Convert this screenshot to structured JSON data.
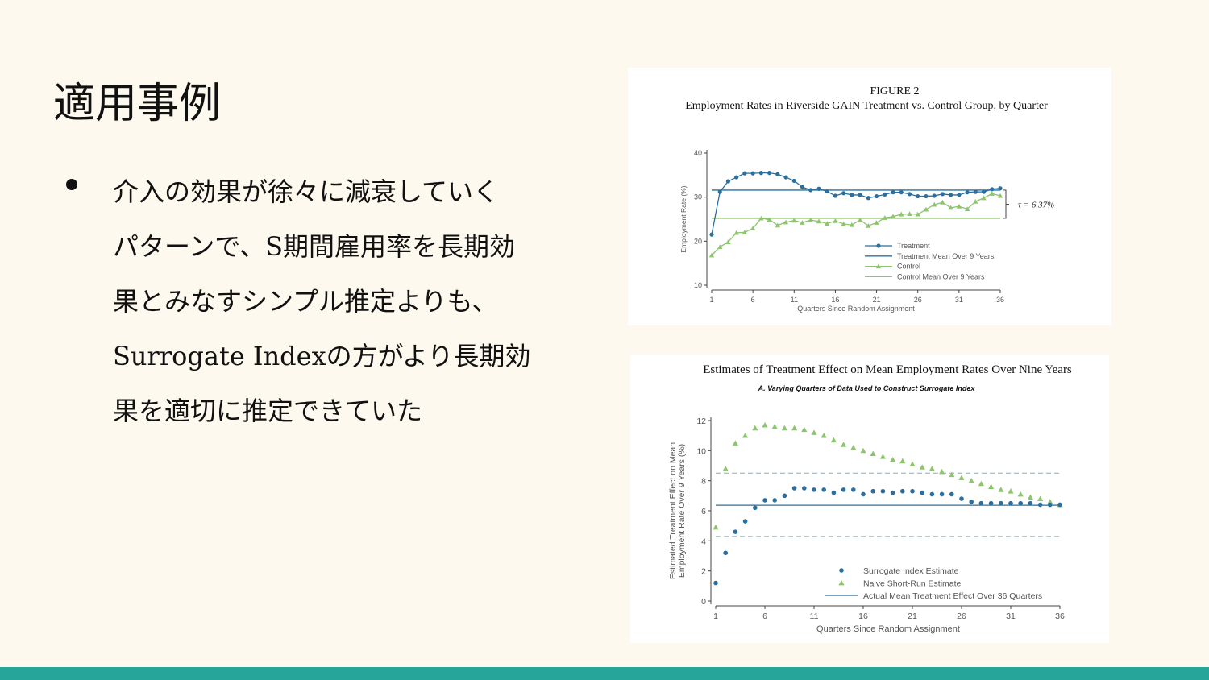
{
  "slide": {
    "title": "適用事例",
    "bullet_lines": [
      "介入の効果が徐々に減衰していく",
      "パターンで、S期間雇用率を長期効",
      "果とみなすシンプル推定よりも、",
      "Surrogate Indexの方がより長期効",
      "果を適切に推定できていた"
    ]
  },
  "colors": {
    "blue": "#2b6f9e",
    "green": "#8dc56c",
    "dashed": "#9fc6d6",
    "bar": "#26a69a"
  },
  "chart_data": [
    {
      "type": "line",
      "figure_label": "FIGURE 2",
      "title": "Employment Rates in Riverside GAIN Treatment vs. Control Group, by Quarter",
      "xlabel": "Quarters Since Random Assignment",
      "ylabel": "Employment Rate (%)",
      "xticks": [
        1,
        6,
        11,
        16,
        21,
        26,
        31,
        36
      ],
      "yticks": [
        10,
        20,
        30,
        40
      ],
      "xlim": [
        1,
        36
      ],
      "ylim": [
        10,
        40
      ],
      "annotation": "τ = 6.37%",
      "legend_position": "bottom-right",
      "x": [
        1,
        2,
        3,
        4,
        5,
        6,
        7,
        8,
        9,
        10,
        11,
        12,
        13,
        14,
        15,
        16,
        17,
        18,
        19,
        20,
        21,
        22,
        23,
        24,
        25,
        26,
        27,
        28,
        29,
        30,
        31,
        32,
        33,
        34,
        35,
        36
      ],
      "series": [
        {
          "name": "Treatment",
          "marker": "circle",
          "values": [
            21.5,
            31.2,
            33.6,
            34.5,
            35.4,
            35.4,
            35.5,
            35.5,
            35.2,
            34.5,
            33.7,
            32.3,
            31.6,
            31.9,
            31.3,
            30.3,
            30.9,
            30.5,
            30.5,
            29.8,
            30.2,
            30.6,
            31.1,
            31.1,
            30.7,
            30.2,
            30.2,
            30.3,
            30.7,
            30.5,
            30.5,
            31.1,
            31.2,
            31.2,
            31.8,
            32.0
          ]
        },
        {
          "name": "Treatment Mean Over 9 Years",
          "constant": 31.6
        },
        {
          "name": "Control",
          "marker": "triangle",
          "values": [
            16.8,
            18.7,
            19.8,
            21.9,
            22.0,
            22.9,
            25.2,
            24.9,
            23.6,
            24.3,
            24.7,
            24.2,
            24.8,
            24.5,
            24.0,
            24.6,
            23.9,
            23.7,
            24.8,
            23.5,
            24.2,
            25.3,
            25.6,
            26.1,
            26.2,
            26.1,
            27.2,
            28.3,
            28.8,
            27.6,
            27.9,
            27.3,
            29.0,
            29.8,
            30.8,
            30.3
          ]
        },
        {
          "name": "Control Mean Over 9 Years",
          "constant": 25.2
        }
      ]
    },
    {
      "type": "scatter",
      "title": "Estimates of Treatment Effect on Mean Employment Rates Over Nine Years",
      "subtitle": "A. Varying Quarters of Data Used to Construct Surrogate Index",
      "xlabel": "Quarters Since Random Assignment",
      "ylabel_lines": [
        "Estimated Treatment Effect on Mean",
        "Employment Rate Over 9 Years (%)"
      ],
      "xticks": [
        1,
        6,
        11,
        16,
        21,
        26,
        31,
        36
      ],
      "yticks": [
        0,
        2,
        4,
        6,
        8,
        10,
        12
      ],
      "xlim": [
        1,
        36
      ],
      "ylim": [
        0,
        12
      ],
      "legend_position": "bottom-right",
      "x": [
        1,
        2,
        3,
        4,
        5,
        6,
        7,
        8,
        9,
        10,
        11,
        12,
        13,
        14,
        15,
        16,
        17,
        18,
        19,
        20,
        21,
        22,
        23,
        24,
        25,
        26,
        27,
        28,
        29,
        30,
        31,
        32,
        33,
        34,
        35,
        36
      ],
      "series": [
        {
          "name": "Surrogate Index Estimate",
          "marker": "circle",
          "values": [
            1.2,
            3.2,
            4.6,
            5.3,
            6.2,
            6.7,
            6.7,
            7.0,
            7.5,
            7.5,
            7.4,
            7.4,
            7.2,
            7.4,
            7.4,
            7.1,
            7.3,
            7.3,
            7.2,
            7.3,
            7.3,
            7.2,
            7.1,
            7.1,
            7.1,
            6.8,
            6.6,
            6.5,
            6.5,
            6.5,
            6.5,
            6.5,
            6.5,
            6.4,
            6.4,
            6.4
          ]
        },
        {
          "name": "Naive Short-Run Estimate",
          "marker": "triangle",
          "values": [
            4.9,
            8.8,
            10.5,
            11.0,
            11.5,
            11.7,
            11.6,
            11.5,
            11.5,
            11.4,
            11.2,
            11.0,
            10.7,
            10.4,
            10.2,
            10.0,
            9.8,
            9.6,
            9.4,
            9.3,
            9.1,
            8.9,
            8.8,
            8.6,
            8.4,
            8.2,
            8.0,
            7.8,
            7.6,
            7.4,
            7.3,
            7.1,
            6.9,
            6.8,
            6.6,
            6.4
          ]
        },
        {
          "name": "Actual Mean Treatment Effect Over 36 Quarters",
          "constant": 6.37
        }
      ],
      "ci_band": [
        4.3,
        8.5
      ]
    }
  ]
}
